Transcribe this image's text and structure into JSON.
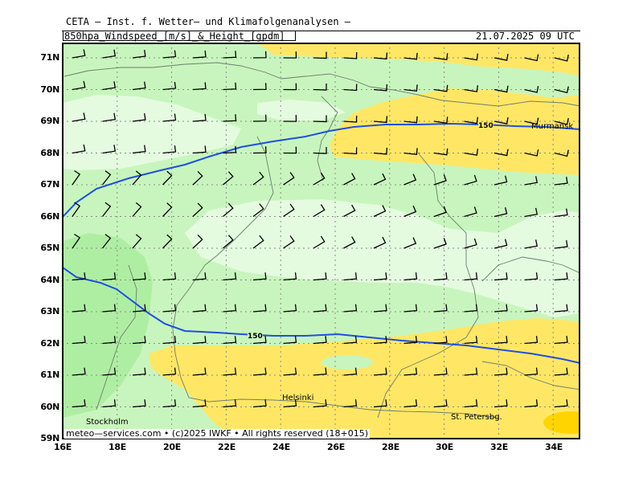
{
  "header": {
    "source": "CETA — Inst. f. Wetter— und Klimafolgenanalysen —",
    "parameter": "850hpa_Windspeed_[m/s]_&_Height_[gpdm]",
    "datetime": "21.07.2025 09 UTC"
  },
  "axes": {
    "lat_labels": [
      "71N",
      "70N",
      "69N",
      "68N",
      "67N",
      "66N",
      "65N",
      "64N",
      "63N",
      "62N",
      "61N",
      "60N",
      "59N"
    ],
    "lon_labels": [
      "16E",
      "18E",
      "20E",
      "22E",
      "24E",
      "26E",
      "28E",
      "30E",
      "32E",
      "34E"
    ]
  },
  "contours": [
    {
      "label": "150"
    },
    {
      "label": "150"
    }
  ],
  "places": [
    "Murmansk",
    "Helsinki",
    "Stockholm",
    "St. Petersbg."
  ],
  "footer": "meteo—services.com • (c)2025 IWKF • All rights reserved (18+015)",
  "colors": {
    "light_green": "#c8f5bd",
    "pale_green": "#e4fbe0",
    "mid_green": "#aeeea2",
    "yellow": "#ffe765",
    "gold": "#ffd400",
    "contour_blue": "#1f4fe0",
    "coast_gray": "#6d7d6d"
  }
}
